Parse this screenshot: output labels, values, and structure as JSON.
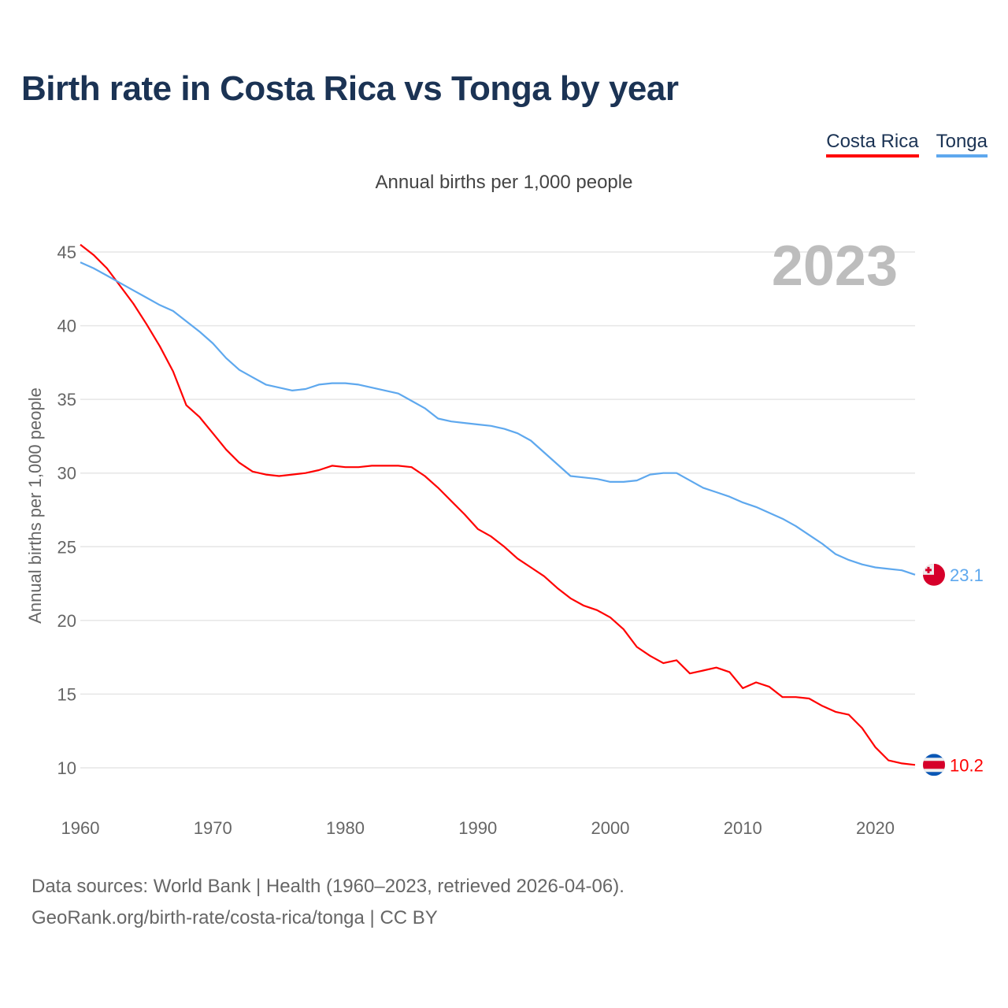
{
  "title": "Birth rate in Costa Rica vs Tonga by year",
  "legend": [
    {
      "label": "Costa Rica",
      "color": "#ff0000"
    },
    {
      "label": "Tonga",
      "color": "#5ea8ee"
    }
  ],
  "subtitle": "Annual births per 1,000 people",
  "year_label": "2023",
  "footer": {
    "line1": "Data sources: World Bank | Health (1960–2023, retrieved 2026-04-06).",
    "line2": "GeoRank.org/birth-rate/costa-rica/tonga | CC BY"
  },
  "chart_data": {
    "type": "line",
    "title": "Birth rate in Costa Rica vs Tonga by year",
    "xlabel": "",
    "ylabel": "Annual births per 1,000 people",
    "xlim": [
      1960,
      2023
    ],
    "ylim": [
      10,
      45
    ],
    "yticks": [
      10,
      15,
      20,
      25,
      30,
      35,
      40,
      45
    ],
    "xticks": [
      1960,
      1970,
      1980,
      1990,
      2000,
      2010,
      2020
    ],
    "grid": true,
    "legend_position": "top-right",
    "x_start": 1960,
    "series": [
      {
        "name": "Costa Rica",
        "color": "#ff0000",
        "end_label": "10.2",
        "flag": "costa-rica",
        "values": [
          45.5,
          44.8,
          43.9,
          42.7,
          41.5,
          40.1,
          38.6,
          36.9,
          34.6,
          33.8,
          32.7,
          31.6,
          30.7,
          30.1,
          29.9,
          29.8,
          29.9,
          30.0,
          30.2,
          30.5,
          30.4,
          30.4,
          30.5,
          30.5,
          30.5,
          30.4,
          29.8,
          29.0,
          28.1,
          27.2,
          26.2,
          25.7,
          25.0,
          24.2,
          23.6,
          23.0,
          22.2,
          21.5,
          21.0,
          20.7,
          20.2,
          19.4,
          18.2,
          17.6,
          17.1,
          17.3,
          16.4,
          16.6,
          16.8,
          16.5,
          15.4,
          15.8,
          15.5,
          14.8,
          14.8,
          14.7,
          14.2,
          13.8,
          13.6,
          12.7,
          11.4,
          10.5,
          10.3,
          10.2
        ]
      },
      {
        "name": "Tonga",
        "color": "#5ea8ee",
        "end_label": "23.1",
        "flag": "tonga",
        "values": [
          44.3,
          43.9,
          43.4,
          42.9,
          42.4,
          41.9,
          41.4,
          41.0,
          40.3,
          39.6,
          38.8,
          37.8,
          37.0,
          36.5,
          36.0,
          35.8,
          35.6,
          35.7,
          36.0,
          36.1,
          36.1,
          36.0,
          35.8,
          35.6,
          35.4,
          34.9,
          34.4,
          33.7,
          33.5,
          33.4,
          33.3,
          33.2,
          33.0,
          32.7,
          32.2,
          31.4,
          30.6,
          29.8,
          29.7,
          29.6,
          29.4,
          29.4,
          29.5,
          29.9,
          30.0,
          30.0,
          29.5,
          29.0,
          28.7,
          28.4,
          28.0,
          27.7,
          27.3,
          26.9,
          26.4,
          25.8,
          25.2,
          24.5,
          24.1,
          23.8,
          23.6,
          23.5,
          23.4,
          23.1
        ]
      }
    ]
  }
}
